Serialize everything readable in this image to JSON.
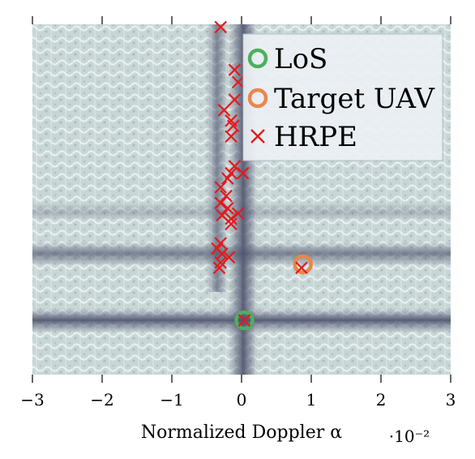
{
  "chart_data": {
    "type": "scatter",
    "xlabel": "Normalized Doppler α",
    "ylabel": "",
    "x_scale_label": "·10⁻²",
    "xlim": [
      -3,
      3
    ],
    "ylim": [
      0,
      1
    ],
    "xticks": [
      -3,
      -2,
      -1,
      0,
      1,
      2,
      3
    ],
    "xtick_labels": [
      "−3",
      "−2",
      "−1",
      "0",
      "1",
      "2",
      "3"
    ],
    "background": "heatmap",
    "legend_position": "top-right",
    "series": [
      {
        "name": "LoS",
        "marker": "circle",
        "color": "#4daf5f",
        "points": [
          {
            "x": 0.04,
            "y": 0.155
          }
        ]
      },
      {
        "name": "Target UAV",
        "marker": "circle",
        "color": "#e8874a",
        "points": [
          {
            "x": 0.88,
            "y": 0.315
          }
        ]
      },
      {
        "name": "HRPE",
        "marker": "x",
        "color": "#e41a1c",
        "points": [
          {
            "x": -0.3,
            "y": 0.992
          },
          {
            "x": -0.1,
            "y": 0.87
          },
          {
            "x": -0.05,
            "y": 0.835
          },
          {
            "x": -0.1,
            "y": 0.785
          },
          {
            "x": -0.25,
            "y": 0.755
          },
          {
            "x": -0.15,
            "y": 0.725
          },
          {
            "x": -0.12,
            "y": 0.71
          },
          {
            "x": -0.15,
            "y": 0.68
          },
          {
            "x": -0.1,
            "y": 0.595
          },
          {
            "x": -0.15,
            "y": 0.575
          },
          {
            "x": 0.02,
            "y": 0.575
          },
          {
            "x": -0.2,
            "y": 0.56
          },
          {
            "x": -0.3,
            "y": 0.535
          },
          {
            "x": -0.22,
            "y": 0.51
          },
          {
            "x": -0.3,
            "y": 0.49
          },
          {
            "x": -0.2,
            "y": 0.475
          },
          {
            "x": -0.28,
            "y": 0.455
          },
          {
            "x": -0.05,
            "y": 0.46
          },
          {
            "x": -0.15,
            "y": 0.445
          },
          {
            "x": -0.15,
            "y": 0.43
          },
          {
            "x": -0.3,
            "y": 0.375
          },
          {
            "x": -0.35,
            "y": 0.36
          },
          {
            "x": -0.28,
            "y": 0.345
          },
          {
            "x": -0.18,
            "y": 0.335
          },
          {
            "x": -0.3,
            "y": 0.32
          },
          {
            "x": -0.32,
            "y": 0.305
          },
          {
            "x": 0.86,
            "y": 0.305
          },
          {
            "x": 0.04,
            "y": 0.155
          }
        ]
      }
    ]
  }
}
